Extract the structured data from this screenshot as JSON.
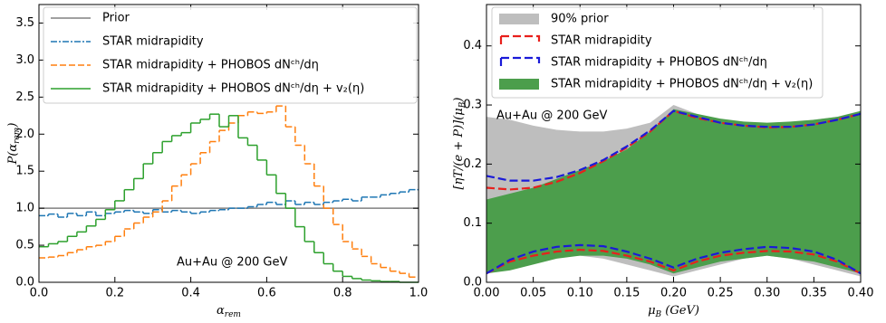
{
  "chart_data": [
    {
      "type": "histogram",
      "xlabel": {
        "main": "α",
        "sub": "rem"
      },
      "ylabel": {
        "main": "P(α",
        "sub": "rem",
        "end": ")"
      },
      "annotation": "Au+Au @ 200 GeV",
      "xlim": [
        0,
        1
      ],
      "ylim": [
        0,
        3.75
      ],
      "xticks": [
        {
          "value": 0,
          "label": "0.0"
        },
        0.2,
        0.4,
        0.6,
        0.8,
        {
          "value": 1,
          "label": "1.0"
        }
      ],
      "yticks": [
        {
          "value": 0,
          "label": "0.0"
        },
        0.5,
        {
          "value": 1,
          "label": "1.0"
        },
        1.5,
        {
          "value": 2,
          "label": "2.0"
        },
        2.5,
        {
          "value": 3,
          "label": "3.0"
        },
        3.5
      ],
      "reference_line": {
        "name": "Prior",
        "color": "#808080",
        "value": 1.0
      },
      "bins": [
        0,
        0.025,
        0.05,
        0.075,
        0.1,
        0.125,
        0.15,
        0.175,
        0.2,
        0.225,
        0.25,
        0.275,
        0.3,
        0.325,
        0.35,
        0.375,
        0.4,
        0.425,
        0.45,
        0.475,
        0.5,
        0.525,
        0.55,
        0.575,
        0.6,
        0.625,
        0.65,
        0.675,
        0.7,
        0.725,
        0.75,
        0.775,
        0.8,
        0.825,
        0.85,
        0.875,
        0.9,
        0.925,
        0.95,
        0.975,
        1
      ],
      "series": [
        {
          "name": "STAR midrapidity",
          "color": "#1f77b4",
          "linestyle": "dashdot",
          "values": [
            0.9,
            0.92,
            0.88,
            0.93,
            0.9,
            0.95,
            0.9,
            0.93,
            0.95,
            0.97,
            0.95,
            0.93,
            0.98,
            0.95,
            0.97,
            0.95,
            0.93,
            0.95,
            0.97,
            0.98,
            1.0,
            1.0,
            1.02,
            1.05,
            1.08,
            1.05,
            1.1,
            1.05,
            1.08,
            1.05,
            1.08,
            1.1,
            1.12,
            1.1,
            1.15,
            1.15,
            1.18,
            1.2,
            1.22,
            1.25
          ]
        },
        {
          "name": "STAR midrapidity + PHOBOS dNᶜʰ/dη",
          "color": "#ff7f0e",
          "linestyle": "dashed",
          "values": [
            0.33,
            0.34,
            0.36,
            0.4,
            0.44,
            0.48,
            0.5,
            0.55,
            0.62,
            0.72,
            0.8,
            0.88,
            0.95,
            1.1,
            1.3,
            1.45,
            1.6,
            1.75,
            1.9,
            2.05,
            2.15,
            2.25,
            2.3,
            2.28,
            2.3,
            2.38,
            2.1,
            1.85,
            1.6,
            1.3,
            1.0,
            0.78,
            0.55,
            0.45,
            0.35,
            0.25,
            0.2,
            0.15,
            0.12,
            0.07
          ]
        },
        {
          "name": "STAR midrapidity + PHOBOS dNᶜʰ/dη + v₂(η)",
          "color": "#2ca02c",
          "linestyle": "solid",
          "values": [
            0.48,
            0.52,
            0.55,
            0.62,
            0.68,
            0.76,
            0.85,
            0.98,
            1.1,
            1.25,
            1.4,
            1.6,
            1.75,
            1.9,
            1.98,
            2.02,
            2.15,
            2.2,
            2.27,
            2.1,
            2.25,
            1.95,
            1.85,
            1.65,
            1.45,
            1.2,
            1.0,
            0.75,
            0.55,
            0.4,
            0.25,
            0.15,
            0.08,
            0.05,
            0.03,
            0.02,
            0.01,
            0.01,
            0,
            0
          ]
        }
      ]
    },
    {
      "type": "band",
      "xlabel": {
        "main": "μ",
        "sub": "B",
        "end": " (GeV)"
      },
      "ylabel": {
        "main": "[ηT/(e + P)](μ",
        "sub": "B",
        "end": ")"
      },
      "annotation": "Au+Au @ 200 GeV",
      "xlim": [
        0,
        0.4
      ],
      "ylim": [
        0,
        0.47
      ],
      "xticks": [
        {
          "value": 0,
          "label": "0.00"
        },
        0.05,
        {
          "value": 0.1,
          "label": "0.10"
        },
        0.15,
        {
          "value": 0.2,
          "label": "0.20"
        },
        0.25,
        {
          "value": 0.3,
          "label": "0.30"
        },
        0.35,
        {
          "value": 0.4,
          "label": "0.40"
        }
      ],
      "yticks": [
        {
          "value": 0,
          "label": "0.0"
        },
        0.1,
        0.2,
        0.3,
        0.4
      ],
      "x": [
        0,
        0.025,
        0.05,
        0.075,
        0.1,
        0.125,
        0.15,
        0.175,
        0.2,
        0.225,
        0.25,
        0.275,
        0.3,
        0.325,
        0.35,
        0.375,
        0.4
      ],
      "bands": [
        {
          "name": "90% prior",
          "color": "#bebebe",
          "upper": [
            0.28,
            0.275,
            0.265,
            0.258,
            0.255,
            0.255,
            0.26,
            0.27,
            0.3,
            0.285,
            0.275,
            0.27,
            0.265,
            0.27,
            0.275,
            0.28,
            0.285
          ],
          "lower": [
            0.015,
            0.03,
            0.04,
            0.045,
            0.045,
            0.04,
            0.03,
            0.02,
            0.01,
            0.02,
            0.03,
            0.04,
            0.045,
            0.04,
            0.03,
            0.02,
            0.01
          ]
        },
        {
          "name": "STAR midrapidity + PHOBOS dNᶜʰ/dη + v₂(η)",
          "color": "#4c9e4c",
          "upper": [
            0.14,
            0.15,
            0.16,
            0.175,
            0.19,
            0.205,
            0.225,
            0.255,
            0.293,
            0.285,
            0.277,
            0.272,
            0.27,
            0.272,
            0.275,
            0.28,
            0.29
          ],
          "lower": [
            0.015,
            0.02,
            0.03,
            0.04,
            0.045,
            0.045,
            0.04,
            0.03,
            0.015,
            0.025,
            0.035,
            0.04,
            0.045,
            0.04,
            0.035,
            0.025,
            0.015
          ]
        }
      ],
      "series": [
        {
          "name": "STAR midrapidity",
          "color": "#e8201c",
          "upper": [
            0.16,
            0.157,
            0.16,
            0.17,
            0.185,
            0.205,
            0.228,
            0.255,
            0.29,
            0.278,
            0.27,
            0.265,
            0.262,
            0.263,
            0.267,
            0.275,
            0.285
          ],
          "lower": [
            0.015,
            0.035,
            0.045,
            0.052,
            0.055,
            0.053,
            0.045,
            0.035,
            0.02,
            0.035,
            0.045,
            0.05,
            0.053,
            0.052,
            0.047,
            0.035,
            0.015
          ]
        },
        {
          "name": "STAR midrapidity + PHOBOS dNᶜʰ/dη",
          "color": "#1a1ad8",
          "upper": [
            0.18,
            0.172,
            0.172,
            0.178,
            0.19,
            0.207,
            0.23,
            0.257,
            0.29,
            0.28,
            0.27,
            0.265,
            0.263,
            0.263,
            0.267,
            0.275,
            0.285
          ],
          "lower": [
            0.015,
            0.038,
            0.052,
            0.06,
            0.063,
            0.061,
            0.052,
            0.04,
            0.025,
            0.04,
            0.05,
            0.056,
            0.06,
            0.058,
            0.052,
            0.038,
            0.015
          ]
        }
      ]
    }
  ]
}
